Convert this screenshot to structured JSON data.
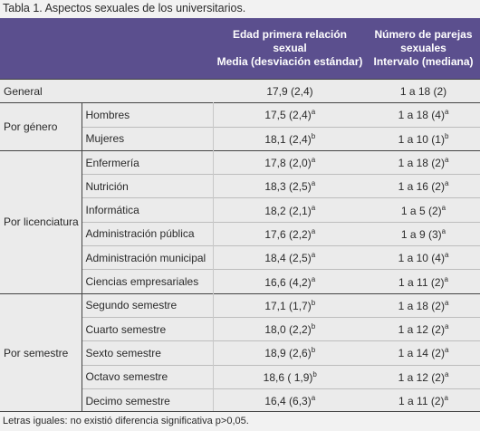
{
  "caption": "Tabla 1. Aspectos sexuales de los universitarios.",
  "header": {
    "col1": [
      "Edad primera relación",
      "sexual",
      "Media (desviación estándar)"
    ],
    "col2": [
      "Número de parejas",
      "sexuales",
      "Intervalo (mediana)"
    ]
  },
  "groups": [
    {
      "label": "General",
      "rows": [
        {
          "age": {
            "text": "17,9 (2,4)"
          },
          "range": {
            "text": "1 a 18 (2)"
          }
        }
      ]
    },
    {
      "label": "Por género",
      "rows": [
        {
          "name": "Hombres",
          "age": {
            "text": "17,5 (2,4)",
            "sup": "a"
          },
          "range": {
            "text": "1 a 18 (4)",
            "sup": "a"
          }
        },
        {
          "name": "Mujeres",
          "age": {
            "text": "18,1 (2,4)",
            "sup": "b"
          },
          "range": {
            "text": "1 a 10 (1)",
            "sup": "b"
          }
        }
      ]
    },
    {
      "label": "Por licenciatura",
      "rows": [
        {
          "name": "Enfermería",
          "age": {
            "text": "17,8 (2,0)",
            "sup": "a"
          },
          "range": {
            "text": "1 a 18 (2)",
            "sup": "a"
          }
        },
        {
          "name": "Nutrición",
          "age": {
            "text": "18,3 (2,5)",
            "sup": "a"
          },
          "range": {
            "text": "1 a 16 (2)",
            "sup": "a"
          }
        },
        {
          "name": "Informática",
          "age": {
            "text": "18,2 (2,1)",
            "sup": "a"
          },
          "range": {
            "text": "1 a 5 (2)",
            "sup": "a"
          }
        },
        {
          "name": "Administración pública",
          "age": {
            "text": "17,6 (2,2)",
            "sup": "a"
          },
          "range": {
            "text": "1 a 9 (3)",
            "sup": "a"
          }
        },
        {
          "name": "Administración municipal",
          "age": {
            "text": "18,4 (2,5)",
            "sup": "a"
          },
          "range": {
            "text": "1 a 10 (4)",
            "sup": "a"
          }
        },
        {
          "name": "Ciencias empresariales",
          "age": {
            "text": "16,6 (4,2)",
            "sup": "a"
          },
          "range": {
            "text": "1 a 11 (2)",
            "sup": "a"
          }
        }
      ]
    },
    {
      "label": "Por semestre",
      "rows": [
        {
          "name": "Segundo semestre",
          "age": {
            "text": "17,1 (1,7)",
            "sup": "b"
          },
          "range": {
            "text": "1 a 18 (2)",
            "sup": "a"
          }
        },
        {
          "name": "Cuarto semestre",
          "age": {
            "text": "18,0 (2,2)",
            "sup": "b"
          },
          "range": {
            "text": "1 a 12 (2)",
            "sup": "a"
          }
        },
        {
          "name": "Sexto semestre",
          "age": {
            "text": "18,9 (2,6)",
            "sup": "b"
          },
          "range": {
            "text": "1 a 14 (2)",
            "sup": "a"
          }
        },
        {
          "name": "Octavo semestre",
          "age": {
            "text": "18,6 ( 1,9)",
            "sup": "b"
          },
          "range": {
            "text": "1 a 12 (2)",
            "sup": "a"
          }
        },
        {
          "name": "Decimo semestre",
          "age": {
            "text": "16,4 (6,3)",
            "sup": "a"
          },
          "range": {
            "text": "1 a 11 (2)",
            "sup": "a"
          }
        }
      ]
    }
  ],
  "footnote": "Letras iguales: no existió diferencia significativa p>0,05."
}
